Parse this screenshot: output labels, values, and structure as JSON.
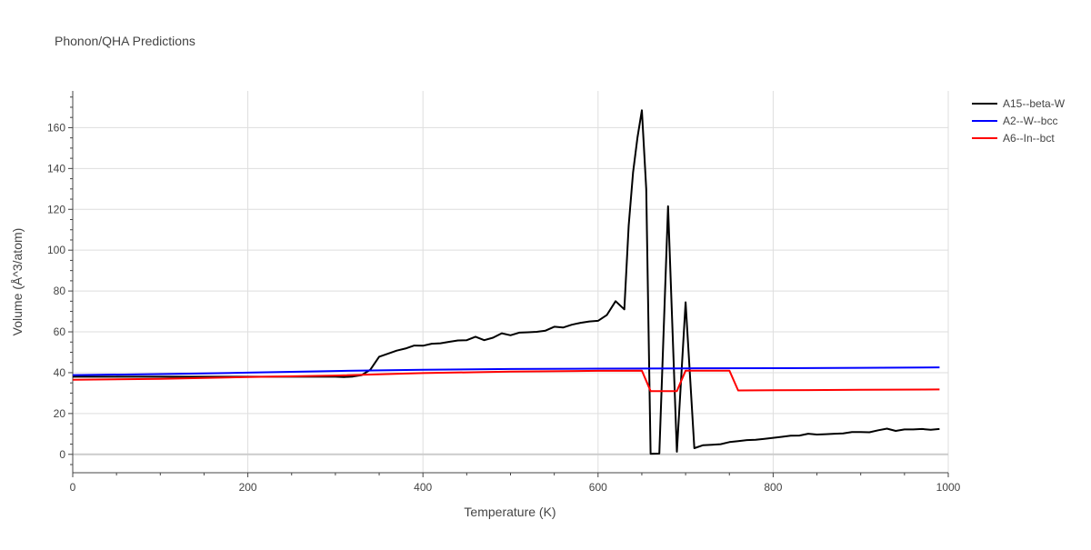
{
  "chart_data": {
    "type": "line",
    "title": "Phonon/QHA Predictions",
    "xlabel": "Temperature (K)",
    "ylabel": "Volume (Å^3/atom)",
    "xlim": [
      0,
      1000
    ],
    "ylim": [
      -9,
      178
    ],
    "x_ticks": [
      0,
      200,
      400,
      600,
      800,
      1000
    ],
    "y_ticks": [
      0,
      20,
      40,
      60,
      80,
      100,
      120,
      140,
      160
    ],
    "grid": true,
    "legend_position": "top-right",
    "series": [
      {
        "name": "A15--beta-W",
        "color": "#000000",
        "points": [
          [
            0,
            38.0
          ],
          [
            100,
            38.0
          ],
          [
            200,
            38.0
          ],
          [
            300,
            38.0
          ],
          [
            310,
            37.9
          ],
          [
            320,
            38.1
          ],
          [
            330,
            38.8
          ],
          [
            340,
            41.5
          ],
          [
            350,
            47.8
          ],
          [
            360,
            49.3
          ],
          [
            370,
            50.8
          ],
          [
            380,
            51.8
          ],
          [
            390,
            53.3
          ],
          [
            400,
            53.2
          ],
          [
            410,
            54.2
          ],
          [
            420,
            54.4
          ],
          [
            430,
            55.1
          ],
          [
            440,
            55.8
          ],
          [
            450,
            55.9
          ],
          [
            460,
            57.6
          ],
          [
            470,
            55.9
          ],
          [
            480,
            57.1
          ],
          [
            490,
            59.3
          ],
          [
            500,
            58.3
          ],
          [
            510,
            59.6
          ],
          [
            520,
            59.8
          ],
          [
            530,
            60.0
          ],
          [
            540,
            60.6
          ],
          [
            550,
            62.5
          ],
          [
            560,
            62.1
          ],
          [
            570,
            63.5
          ],
          [
            580,
            64.4
          ],
          [
            590,
            65.1
          ],
          [
            600,
            65.4
          ],
          [
            610,
            68.2
          ],
          [
            620,
            75.0
          ],
          [
            630,
            71.0
          ],
          [
            635,
            112.0
          ],
          [
            640,
            138.0
          ],
          [
            645,
            155.0
          ],
          [
            650,
            168.5
          ],
          [
            655,
            130.0
          ],
          [
            660,
            0.3
          ],
          [
            670,
            0.4
          ],
          [
            680,
            121.5
          ],
          [
            690,
            1.3
          ],
          [
            700,
            74.5
          ],
          [
            710,
            3.0
          ],
          [
            720,
            4.5
          ],
          [
            730,
            4.7
          ],
          [
            740,
            5.0
          ],
          [
            750,
            6.0
          ],
          [
            760,
            6.5
          ],
          [
            770,
            7.0
          ],
          [
            780,
            7.1
          ],
          [
            790,
            7.6
          ],
          [
            800,
            8.1
          ],
          [
            810,
            8.6
          ],
          [
            820,
            9.1
          ],
          [
            830,
            9.2
          ],
          [
            840,
            10.1
          ],
          [
            850,
            9.7
          ],
          [
            860,
            9.9
          ],
          [
            870,
            10.1
          ],
          [
            880,
            10.3
          ],
          [
            890,
            10.9
          ],
          [
            900,
            10.9
          ],
          [
            910,
            10.8
          ],
          [
            920,
            11.8
          ],
          [
            930,
            12.6
          ],
          [
            940,
            11.5
          ],
          [
            950,
            12.2
          ],
          [
            960,
            12.2
          ],
          [
            970,
            12.4
          ],
          [
            980,
            12.0
          ],
          [
            990,
            12.4
          ]
        ]
      },
      {
        "name": "A2--W--bcc",
        "color": "#0000ff",
        "points": [
          [
            0,
            38.8
          ],
          [
            100,
            39.3
          ],
          [
            200,
            40.0
          ],
          [
            300,
            40.8
          ],
          [
            400,
            41.4
          ],
          [
            500,
            41.8
          ],
          [
            600,
            42.0
          ],
          [
            700,
            42.1
          ],
          [
            800,
            42.2
          ],
          [
            900,
            42.4
          ],
          [
            990,
            42.6
          ]
        ]
      },
      {
        "name": "A6--In--bct",
        "color": "#ff0000",
        "points": [
          [
            0,
            36.5
          ],
          [
            100,
            37.0
          ],
          [
            200,
            37.9
          ],
          [
            300,
            38.6
          ],
          [
            400,
            39.8
          ],
          [
            500,
            40.5
          ],
          [
            600,
            40.9
          ],
          [
            650,
            41.0
          ],
          [
            660,
            31.0
          ],
          [
            690,
            31.0
          ],
          [
            700,
            41.0
          ],
          [
            750,
            41.0
          ],
          [
            760,
            31.3
          ],
          [
            800,
            31.4
          ],
          [
            900,
            31.6
          ],
          [
            990,
            31.8
          ]
        ]
      }
    ]
  }
}
